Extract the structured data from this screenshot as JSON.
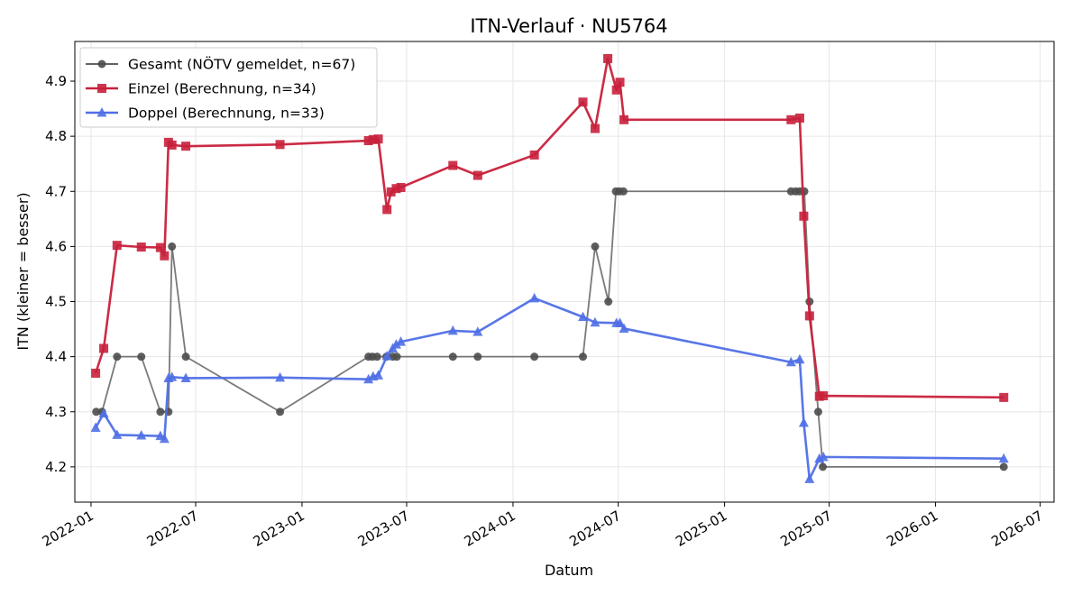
{
  "chart_data": {
    "type": "line",
    "title": "ITN-Verlauf · NU5764",
    "xlabel": "Datum",
    "ylabel": "ITN  (kleiner = besser)",
    "x_type": "date",
    "xlim": [
      "2021-12-04",
      "2026-07-25"
    ],
    "ylim": [
      4.136,
      4.972
    ],
    "x_ticks": [
      {
        "date": "2022-01-01",
        "label": "2022-01"
      },
      {
        "date": "2022-07-01",
        "label": "2022-07"
      },
      {
        "date": "2023-01-01",
        "label": "2023-01"
      },
      {
        "date": "2023-07-01",
        "label": "2023-07"
      },
      {
        "date": "2024-01-01",
        "label": "2024-01"
      },
      {
        "date": "2024-07-01",
        "label": "2024-07"
      },
      {
        "date": "2025-01-01",
        "label": "2025-01"
      },
      {
        "date": "2025-07-01",
        "label": "2025-07"
      },
      {
        "date": "2026-01-01",
        "label": "2026-01"
      },
      {
        "date": "2026-07-01",
        "label": "2026-07"
      }
    ],
    "y_ticks": [
      {
        "value": 4.2,
        "label": "4.2"
      },
      {
        "value": 4.3,
        "label": "4.3"
      },
      {
        "value": 4.4,
        "label": "4.4"
      },
      {
        "value": 4.5,
        "label": "4.5"
      },
      {
        "value": 4.6,
        "label": "4.6"
      },
      {
        "value": 4.7,
        "label": "4.7"
      },
      {
        "value": 4.8,
        "label": "4.8"
      },
      {
        "value": 4.9,
        "label": "4.9"
      }
    ],
    "grid": true,
    "legend_position": "top-left",
    "series": [
      {
        "name": "Gesamt (NÖTV gemeldet, n=67)",
        "color": "#4d4d4d",
        "marker": "circle",
        "points": [
          [
            "2022-01-10",
            4.3
          ],
          [
            "2022-01-20",
            4.3
          ],
          [
            "2022-02-15",
            4.4
          ],
          [
            "2022-03-29",
            4.4
          ],
          [
            "2022-05-01",
            4.3
          ],
          [
            "2022-05-15",
            4.3
          ],
          [
            "2022-05-21",
            4.6
          ],
          [
            "2022-06-14",
            4.4
          ],
          [
            "2022-11-24",
            4.3
          ],
          [
            "2023-04-26",
            4.4
          ],
          [
            "2023-05-03",
            4.4
          ],
          [
            "2023-05-11",
            4.4
          ],
          [
            "2023-05-27",
            4.4
          ],
          [
            "2023-06-07",
            4.4
          ],
          [
            "2023-06-14",
            4.4
          ],
          [
            "2023-09-19",
            4.4
          ],
          [
            "2023-11-01",
            4.4
          ],
          [
            "2024-02-07",
            4.4
          ],
          [
            "2024-05-01",
            4.4
          ],
          [
            "2024-05-22",
            4.6
          ],
          [
            "2024-06-14",
            4.5
          ],
          [
            "2024-06-27",
            4.7
          ],
          [
            "2024-07-03",
            4.7
          ],
          [
            "2024-07-10",
            4.7
          ],
          [
            "2025-04-26",
            4.7
          ],
          [
            "2025-05-04",
            4.7
          ],
          [
            "2025-05-11",
            4.7
          ],
          [
            "2025-05-19",
            4.7
          ],
          [
            "2025-05-28",
            4.5
          ],
          [
            "2025-06-12",
            4.3
          ],
          [
            "2025-06-20",
            4.2
          ],
          [
            "2026-04-29",
            4.2
          ]
        ]
      },
      {
        "name": "Einzel (Berechnung, n=34)",
        "color": "#c8203b",
        "marker": "square",
        "points": [
          [
            "2022-01-09",
            4.37
          ],
          [
            "2022-01-23",
            4.415
          ],
          [
            "2022-02-15",
            4.602
          ],
          [
            "2022-03-29",
            4.599
          ],
          [
            "2022-05-01",
            4.598
          ],
          [
            "2022-05-08",
            4.583
          ],
          [
            "2022-05-15",
            4.789
          ],
          [
            "2022-05-21",
            4.784
          ],
          [
            "2022-06-14",
            4.782
          ],
          [
            "2022-11-24",
            4.785
          ],
          [
            "2023-04-26",
            4.792
          ],
          [
            "2023-05-04",
            4.794
          ],
          [
            "2023-05-13",
            4.795
          ],
          [
            "2023-05-28",
            4.667
          ],
          [
            "2023-06-04",
            4.699
          ],
          [
            "2023-06-13",
            4.705
          ],
          [
            "2023-06-21",
            4.707
          ],
          [
            "2023-09-19",
            4.747
          ],
          [
            "2023-11-01",
            4.729
          ],
          [
            "2024-02-07",
            4.766
          ],
          [
            "2024-05-01",
            4.862
          ],
          [
            "2024-05-22",
            4.814
          ],
          [
            "2024-06-13",
            4.941
          ],
          [
            "2024-06-28",
            4.884
          ],
          [
            "2024-07-04",
            4.898
          ],
          [
            "2024-07-11",
            4.83
          ],
          [
            "2025-04-26",
            4.83
          ],
          [
            "2025-05-11",
            4.833
          ],
          [
            "2025-05-18",
            4.655
          ],
          [
            "2025-05-28",
            4.474
          ],
          [
            "2025-06-14",
            4.328
          ],
          [
            "2025-06-21",
            4.329
          ],
          [
            "2026-04-29",
            4.326
          ]
        ]
      },
      {
        "name": "Doppel (Berechnung, n=33)",
        "color": "#4f6fe6",
        "marker": "triangle",
        "points": [
          [
            "2022-01-09",
            4.271
          ],
          [
            "2022-01-23",
            4.297
          ],
          [
            "2022-02-15",
            4.258
          ],
          [
            "2022-03-29",
            4.257
          ],
          [
            "2022-05-01",
            4.256
          ],
          [
            "2022-05-08",
            4.251
          ],
          [
            "2022-05-15",
            4.361
          ],
          [
            "2022-05-21",
            4.363
          ],
          [
            "2022-06-14",
            4.361
          ],
          [
            "2022-11-24",
            4.362
          ],
          [
            "2023-04-26",
            4.359
          ],
          [
            "2023-05-04",
            4.364
          ],
          [
            "2023-05-13",
            4.366
          ],
          [
            "2023-05-28",
            4.401
          ],
          [
            "2023-06-07",
            4.415
          ],
          [
            "2023-06-13",
            4.422
          ],
          [
            "2023-06-21",
            4.427
          ],
          [
            "2023-09-19",
            4.447
          ],
          [
            "2023-11-01",
            4.445
          ],
          [
            "2024-02-07",
            4.506
          ],
          [
            "2024-05-01",
            4.472
          ],
          [
            "2024-05-22",
            4.462
          ],
          [
            "2024-06-28",
            4.461
          ],
          [
            "2024-07-04",
            4.461
          ],
          [
            "2024-07-11",
            4.451
          ],
          [
            "2025-04-26",
            4.39
          ],
          [
            "2025-05-11",
            4.395
          ],
          [
            "2025-05-18",
            4.28
          ],
          [
            "2025-05-28",
            4.178
          ],
          [
            "2025-06-14",
            4.215
          ],
          [
            "2025-06-21",
            4.218
          ],
          [
            "2026-04-29",
            4.215
          ]
        ]
      }
    ]
  }
}
